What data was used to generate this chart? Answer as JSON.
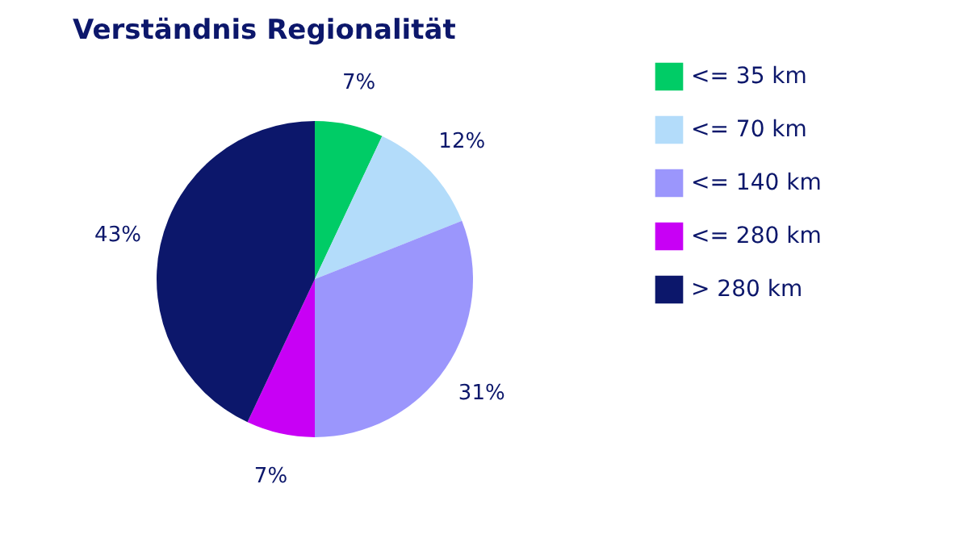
{
  "chart_data": {
    "type": "pie",
    "title": "Verständnis Regionalität",
    "categories": [
      "<= 35 km",
      "<= 70 km",
      "<= 140 km",
      "<= 280 km",
      "> 280 km"
    ],
    "values": [
      7,
      12,
      31,
      7,
      43
    ],
    "value_labels": [
      "7%",
      "12%",
      "31%",
      "7%",
      "43%"
    ],
    "colors": [
      "#00cc66",
      "#b3dcfa",
      "#9b96fc",
      "#c800f5",
      "#0c176b"
    ],
    "legend": "right"
  }
}
